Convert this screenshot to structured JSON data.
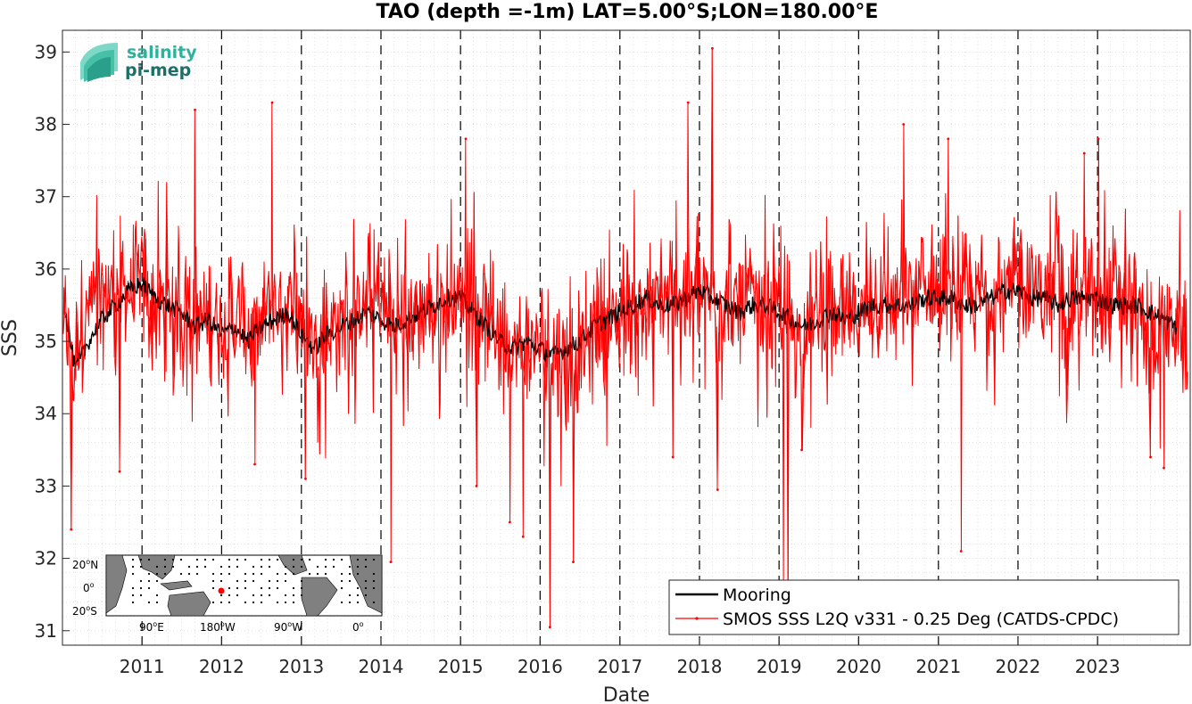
{
  "logo": {
    "line1": "salinity",
    "line2": "pi-mep",
    "color1": "#2bb39b",
    "color2": "#1e6f6a"
  },
  "inset_map": {
    "lat_labels": [
      {
        "value": "20",
        "suffix": "N"
      },
      {
        "value": "0",
        "suffix": ""
      },
      {
        "value": "20",
        "suffix": "S"
      }
    ],
    "lon_labels": [
      {
        "value": "90",
        "suffix": "E"
      },
      {
        "value": "180",
        "suffix": "W"
      },
      {
        "value": "90",
        "suffix": "W"
      },
      {
        "value": "0",
        "suffix": ""
      }
    ],
    "land_color": "#808080",
    "ocean_color": "#ffffff",
    "marker_color": "#ff0000"
  },
  "chart_data": {
    "type": "line",
    "title": "TAO (depth =-1m) LAT=5.00°S;LON=180.00°E",
    "xlabel": "Date",
    "ylabel": "SSS",
    "xlim": [
      "2010-01-01",
      "2024-03-01"
    ],
    "ylim": [
      30.8,
      39.3
    ],
    "yticks": [
      31,
      32,
      33,
      34,
      35,
      36,
      37,
      38,
      39
    ],
    "xticks": [
      "2011",
      "2012",
      "2013",
      "2014",
      "2015",
      "2016",
      "2017",
      "2018",
      "2019",
      "2020",
      "2021",
      "2022",
      "2023"
    ],
    "grid": true,
    "legend_position": "bottom-right",
    "year_dashed_lines": true,
    "series": [
      {
        "name": "Mooring",
        "color": "#000000",
        "x": [
          "2010-01-15",
          "2010-03-01",
          "2010-05-01",
          "2010-07-01",
          "2010-09-01",
          "2010-11-01",
          "2011-01-01",
          "2011-03-01",
          "2011-05-01",
          "2011-07-01",
          "2011-09-01",
          "2011-11-01",
          "2012-01-01",
          "2012-03-01",
          "2012-05-01",
          "2012-07-01",
          "2012-09-01",
          "2012-11-01",
          "2013-01-01",
          "2013-03-01",
          "2013-05-01",
          "2013-07-01",
          "2013-09-01",
          "2013-11-01",
          "2014-01-01",
          "2014-03-01",
          "2014-05-01",
          "2014-07-01",
          "2014-09-01",
          "2014-11-01",
          "2015-01-01",
          "2015-03-01",
          "2015-05-01",
          "2015-07-01",
          "2015-09-01",
          "2015-11-01",
          "2016-01-01",
          "2016-03-01",
          "2016-05-01",
          "2016-07-01",
          "2016-09-01",
          "2016-11-01",
          "2017-01-01",
          "2017-03-01",
          "2017-05-01",
          "2017-07-01",
          "2017-09-01",
          "2017-11-01",
          "2018-01-01",
          "2018-03-01",
          "2018-05-01",
          "2018-07-01",
          "2018-09-01",
          "2018-11-01",
          "2019-01-01",
          "2019-03-01",
          "2019-05-01",
          "2019-07-01",
          "2019-09-01",
          "2019-11-01",
          "2020-01-01",
          "2020-03-01",
          "2020-05-01",
          "2020-07-01",
          "2020-09-01",
          "2020-11-01",
          "2021-01-01",
          "2021-03-01",
          "2021-05-01",
          "2021-07-01",
          "2021-09-01",
          "2021-11-01",
          "2022-01-01",
          "2022-03-01",
          "2022-05-01",
          "2022-07-01",
          "2022-09-01",
          "2022-11-01",
          "2023-01-01",
          "2023-03-01",
          "2023-05-01",
          "2023-07-01",
          "2023-09-01",
          "2023-11-01",
          "2024-01-01"
        ],
        "y": [
          35.4,
          34.6,
          35.0,
          35.3,
          35.5,
          35.7,
          35.8,
          35.6,
          35.5,
          35.4,
          35.2,
          35.3,
          35.1,
          35.2,
          35.0,
          35.2,
          35.3,
          35.4,
          35.1,
          34.9,
          35.1,
          35.2,
          35.3,
          35.4,
          35.3,
          35.2,
          35.3,
          35.4,
          35.5,
          35.6,
          35.6,
          35.4,
          35.2,
          35.0,
          34.9,
          35.0,
          34.9,
          34.8,
          34.9,
          35.0,
          35.2,
          35.3,
          35.4,
          35.5,
          35.6,
          35.5,
          35.5,
          35.6,
          35.7,
          35.6,
          35.5,
          35.4,
          35.5,
          35.5,
          35.4,
          35.3,
          35.2,
          35.3,
          35.4,
          35.3,
          35.4,
          35.5,
          35.5,
          35.5,
          35.5,
          35.6,
          35.6,
          35.6,
          35.5,
          35.5,
          35.6,
          35.7,
          35.7,
          35.6,
          35.6,
          35.5,
          35.6,
          35.6,
          35.6,
          35.5,
          35.5,
          35.5,
          35.4,
          35.3,
          35.2
        ]
      },
      {
        "name": "SMOS SSS L2Q v331 - 0.25 Deg (CATDS-CPDC)",
        "color": "#ff0000",
        "x": [
          "2010-01-05",
          "2010-02-20",
          "2010-03-25",
          "2010-05-15",
          "2010-07-10",
          "2010-09-05",
          "2010-11-01",
          "2011-01-01",
          "2011-02-20",
          "2011-04-15",
          "2011-06-01",
          "2011-08-01",
          "2011-10-01",
          "2011-12-01",
          "2012-02-01",
          "2012-04-01",
          "2012-06-01",
          "2012-08-01",
          "2012-10-01",
          "2012-12-01",
          "2013-02-01",
          "2013-04-01",
          "2013-06-01",
          "2013-08-01",
          "2013-10-01",
          "2013-12-01",
          "2014-02-01",
          "2014-04-01",
          "2014-06-01",
          "2014-08-01",
          "2014-10-01",
          "2014-12-01",
          "2015-02-01",
          "2015-04-01",
          "2015-06-01",
          "2015-08-01",
          "2015-10-01",
          "2015-12-01",
          "2016-02-01",
          "2016-04-01",
          "2016-06-01",
          "2016-08-01",
          "2016-10-01",
          "2016-12-01",
          "2017-02-01",
          "2017-04-01",
          "2017-06-01",
          "2017-08-01",
          "2017-10-01",
          "2017-12-01",
          "2018-02-01",
          "2018-04-01",
          "2018-06-01",
          "2018-08-01",
          "2018-10-01",
          "2018-12-01",
          "2019-02-01",
          "2019-04-01",
          "2019-06-01",
          "2019-08-01",
          "2019-10-01",
          "2019-12-01",
          "2020-02-01",
          "2020-04-01",
          "2020-06-01",
          "2020-08-01",
          "2020-10-01",
          "2020-12-01",
          "2021-02-01",
          "2021-04-01",
          "2021-06-01",
          "2021-08-01",
          "2021-10-01",
          "2021-12-01",
          "2022-02-01",
          "2022-04-01",
          "2022-06-01",
          "2022-08-01",
          "2022-10-01",
          "2022-12-01",
          "2023-02-01",
          "2023-04-01",
          "2023-06-01",
          "2023-08-01",
          "2023-10-01",
          "2023-12-01",
          "2024-02-20"
        ],
        "y": [
          35.3,
          34.5,
          35.2,
          35.5,
          35.6,
          35.8,
          35.7,
          35.8,
          35.5,
          35.6,
          35.4,
          35.5,
          35.3,
          35.4,
          35.2,
          35.3,
          35.1,
          35.4,
          35.5,
          35.6,
          35.1,
          34.9,
          35.2,
          35.3,
          35.5,
          35.6,
          35.4,
          35.2,
          35.3,
          35.5,
          35.4,
          35.6,
          35.6,
          35.5,
          35.2,
          35.0,
          34.8,
          35.0,
          34.9,
          34.7,
          34.6,
          35.0,
          35.2,
          35.3,
          35.5,
          35.4,
          35.5,
          35.6,
          35.7,
          35.5,
          35.6,
          35.5,
          35.4,
          35.6,
          35.5,
          35.4,
          35.3,
          35.1,
          35.3,
          35.4,
          35.2,
          35.3,
          35.4,
          35.6,
          35.5,
          35.6,
          35.7,
          35.7,
          35.6,
          35.5,
          35.6,
          35.7,
          35.6,
          35.7,
          35.8,
          35.7,
          35.6,
          35.5,
          35.6,
          35.5,
          35.6,
          35.7,
          35.4,
          35.2,
          35.0,
          35.3,
          35.1
        ],
        "outliers": [
          {
            "x": "2010-02-10",
            "y": 32.4
          },
          {
            "x": "2010-09-20",
            "y": 33.2
          },
          {
            "x": "2011-09-01",
            "y": 38.2
          },
          {
            "x": "2012-06-01",
            "y": 33.3
          },
          {
            "x": "2012-08-20",
            "y": 38.3
          },
          {
            "x": "2013-01-20",
            "y": 33.1
          },
          {
            "x": "2014-02-15",
            "y": 31.95
          },
          {
            "x": "2015-01-25",
            "y": 37.8
          },
          {
            "x": "2015-03-15",
            "y": 33.0
          },
          {
            "x": "2015-08-15",
            "y": 32.5
          },
          {
            "x": "2015-10-15",
            "y": 32.3
          },
          {
            "x": "2016-02-15",
            "y": 31.05
          },
          {
            "x": "2016-06-01",
            "y": 31.95
          },
          {
            "x": "2017-09-01",
            "y": 33.4
          },
          {
            "x": "2017-11-10",
            "y": 38.3
          },
          {
            "x": "2018-03-01",
            "y": 39.05
          },
          {
            "x": "2018-03-25",
            "y": 32.95
          },
          {
            "x": "2019-01-20",
            "y": 31.6
          },
          {
            "x": "2019-02-10",
            "y": 31.2
          },
          {
            "x": "2019-04-15",
            "y": 33.5
          },
          {
            "x": "2020-07-25",
            "y": 38.0
          },
          {
            "x": "2021-02-15",
            "y": 37.8
          },
          {
            "x": "2021-04-15",
            "y": 32.1
          },
          {
            "x": "2022-11-01",
            "y": 37.6
          },
          {
            "x": "2023-01-05",
            "y": 37.8
          },
          {
            "x": "2023-09-01",
            "y": 33.4
          },
          {
            "x": "2023-11-01",
            "y": 33.25
          }
        ]
      }
    ]
  }
}
